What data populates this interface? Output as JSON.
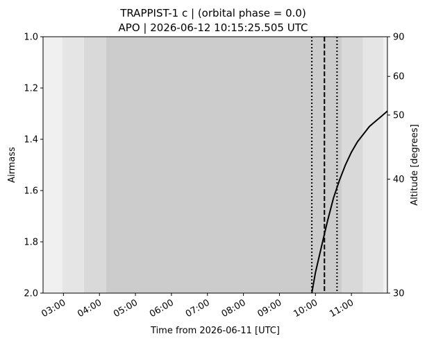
{
  "chart_data": {
    "type": "line",
    "title_line1": "TRAPPIST-1 c | (orbital phase = 0.0)",
    "title_line2": "APO | 2026-06-12 10:15:25.505 UTC",
    "xlabel": "Time from 2026-06-11 [UTC]",
    "ylabel": "Airmass",
    "y2label": "Altitude [degrees]",
    "xlim": [
      "02:26",
      "12:00"
    ],
    "ylim": [
      2.0,
      1.0
    ],
    "x_ticks": [
      "03:00",
      "04:00",
      "05:00",
      "06:00",
      "07:00",
      "08:00",
      "09:00",
      "10:00",
      "11:00"
    ],
    "y_ticks": [
      "1.0",
      "1.2",
      "1.4",
      "1.6",
      "1.8",
      "2.0"
    ],
    "y_tick_values": [
      1.0,
      1.2,
      1.4,
      1.6,
      1.8,
      2.0
    ],
    "y2_ticks": [
      "90",
      "60",
      "50",
      "40",
      "30"
    ],
    "y2_tick_values": [
      90,
      60,
      50,
      40,
      30
    ],
    "twilight_bands": [
      {
        "start": "02:26",
        "end": "02:58",
        "color": "#f0f0f0"
      },
      {
        "start": "02:58",
        "end": "03:34",
        "color": "#e5e5e5"
      },
      {
        "start": "03:34",
        "end": "04:11",
        "color": "#d9d9d9"
      },
      {
        "start": "04:11",
        "end": "10:44",
        "color": "#cccccc"
      },
      {
        "start": "10:44",
        "end": "11:19",
        "color": "#d9d9d9"
      },
      {
        "start": "11:19",
        "end": "11:53",
        "color": "#e5e5e5"
      },
      {
        "start": "11:53",
        "end": "12:00",
        "color": "#f0f0f0"
      }
    ],
    "transit_mid": "10:15",
    "transit_start": "09:54",
    "transit_end": "10:36",
    "series": [
      {
        "color": "#000000",
        "x": [
          "09:54",
          "10:00",
          "10:10",
          "10:20",
          "10:30",
          "10:40",
          "10:50",
          "11:00",
          "11:10",
          "11:20",
          "11:30",
          "11:40",
          "11:50",
          "12:00"
        ],
        "y": [
          2.0,
          1.92,
          1.82,
          1.72,
          1.63,
          1.56,
          1.5,
          1.45,
          1.41,
          1.38,
          1.35,
          1.33,
          1.31,
          1.29
        ]
      }
    ]
  }
}
